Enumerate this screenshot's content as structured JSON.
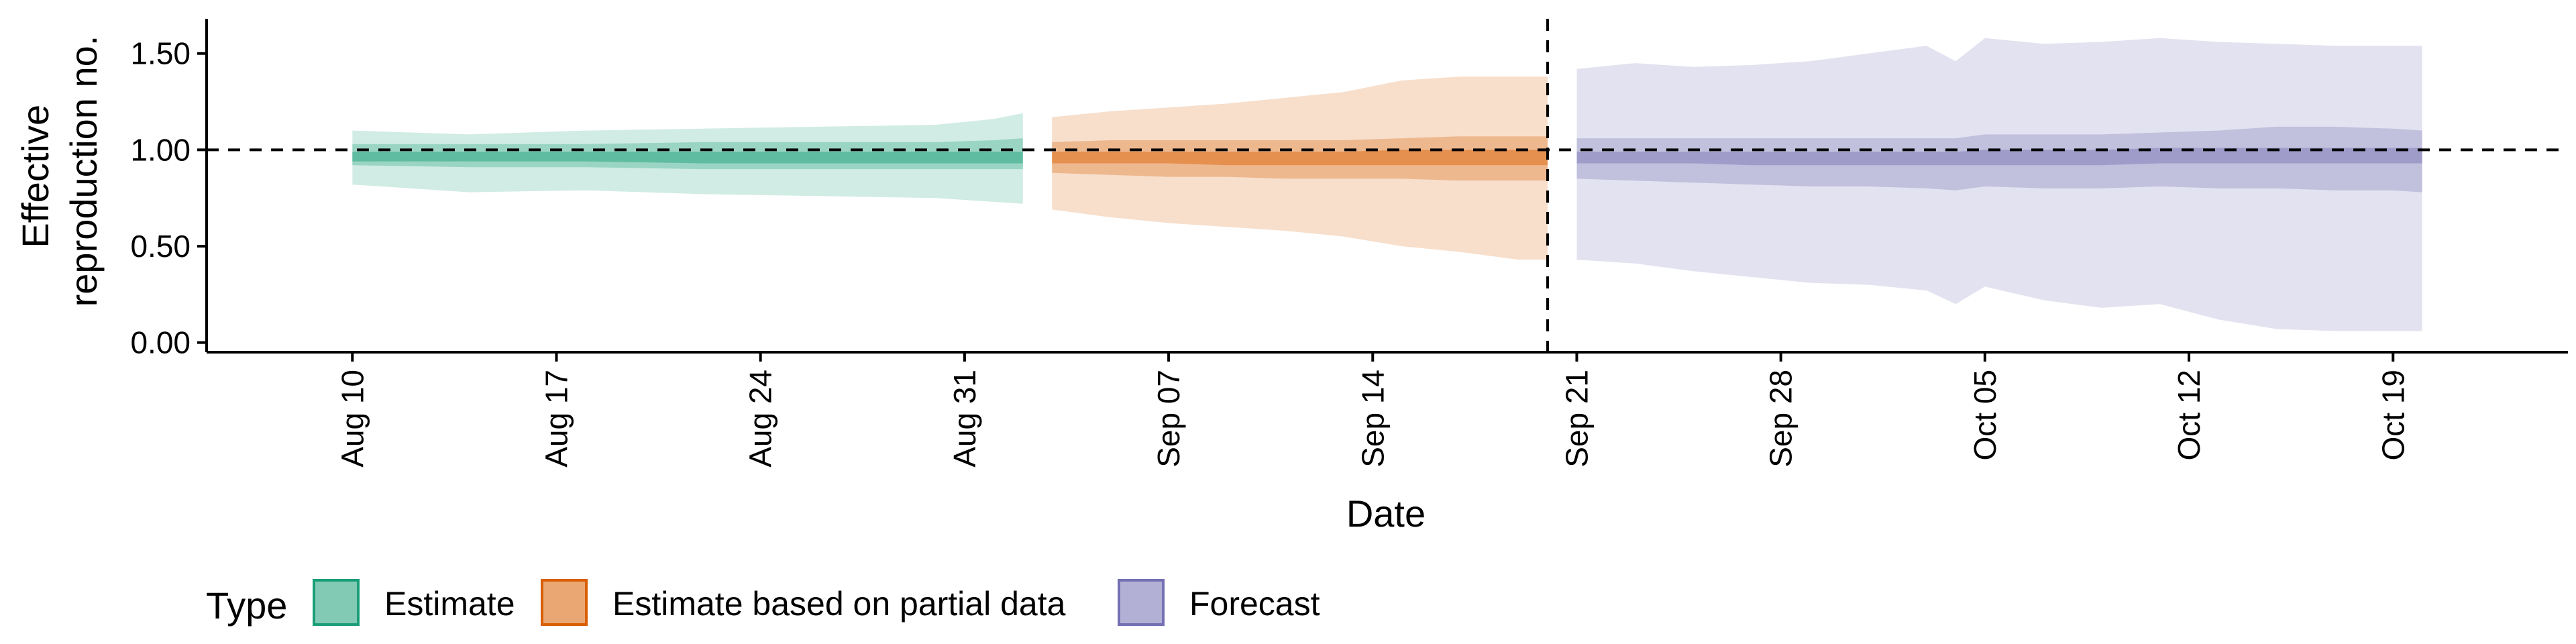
{
  "chart_data": {
    "type": "area",
    "xlabel": "Date",
    "ylabel_lines": [
      "Effective",
      "reproduction no."
    ],
    "ylim": [
      -0.05,
      1.68
    ],
    "xlim": [
      "2020-08-05",
      "2020-10-25"
    ],
    "y_ticks": [
      0.0,
      0.5,
      1.0,
      1.5
    ],
    "y_tick_labels": [
      "0.00",
      "0.50",
      "1.00",
      "1.50"
    ],
    "x_ticks": [
      "2020-08-10",
      "2020-08-17",
      "2020-08-24",
      "2020-08-31",
      "2020-09-07",
      "2020-09-14",
      "2020-09-21",
      "2020-09-28",
      "2020-10-05",
      "2020-10-12",
      "2020-10-19"
    ],
    "x_tick_labels": [
      "Aug 10",
      "Aug 17",
      "Aug 24",
      "Aug 31",
      "Sep 07",
      "Sep 14",
      "Sep 21",
      "Sep 28",
      "Oct 05",
      "Oct 12",
      "Oct 19"
    ],
    "reference_hline": 1.0,
    "reference_vline": "2020-09-20",
    "grid": false,
    "legend": {
      "title": "Type",
      "position": "bottom-left"
    },
    "series": [
      {
        "name": "Estimate",
        "color": "#1B9E77",
        "x": [
          "2020-08-10",
          "2020-08-14",
          "2020-08-18",
          "2020-08-22",
          "2020-08-26",
          "2020-08-30",
          "2020-09-01",
          "2020-09-02"
        ],
        "lower_90": [
          0.82,
          0.78,
          0.79,
          0.77,
          0.76,
          0.75,
          0.73,
          0.72
        ],
        "upper_90": [
          1.1,
          1.08,
          1.1,
          1.11,
          1.12,
          1.13,
          1.16,
          1.19
        ],
        "lower_50": [
          0.92,
          0.91,
          0.91,
          0.9,
          0.9,
          0.9,
          0.9,
          0.9
        ],
        "upper_50": [
          1.03,
          1.03,
          1.03,
          1.04,
          1.04,
          1.04,
          1.05,
          1.06
        ],
        "lower_20": [
          0.94,
          0.94,
          0.94,
          0.93,
          0.93,
          0.93,
          0.93,
          0.93
        ],
        "upper_20": [
          0.99,
          0.99,
          0.99,
          0.99,
          0.99,
          0.99,
          0.99,
          0.99
        ]
      },
      {
        "name": "Estimate based on partial data",
        "color": "#D95F02",
        "x": [
          "2020-09-03",
          "2020-09-05",
          "2020-09-07",
          "2020-09-09",
          "2020-09-11",
          "2020-09-13",
          "2020-09-15",
          "2020-09-17",
          "2020-09-19",
          "2020-09-20"
        ],
        "lower_90": [
          0.69,
          0.65,
          0.62,
          0.6,
          0.58,
          0.55,
          0.5,
          0.47,
          0.43,
          0.43
        ],
        "upper_90": [
          1.17,
          1.2,
          1.22,
          1.24,
          1.27,
          1.3,
          1.36,
          1.38,
          1.38,
          1.38
        ],
        "lower_50": [
          0.88,
          0.87,
          0.86,
          0.86,
          0.85,
          0.85,
          0.85,
          0.84,
          0.84,
          0.84
        ],
        "upper_50": [
          1.04,
          1.05,
          1.05,
          1.05,
          1.05,
          1.05,
          1.06,
          1.07,
          1.07,
          1.07
        ],
        "lower_20": [
          0.93,
          0.93,
          0.93,
          0.92,
          0.92,
          0.92,
          0.92,
          0.92,
          0.92,
          0.92
        ],
        "upper_20": [
          0.99,
          0.99,
          0.99,
          0.99,
          0.99,
          0.99,
          1.0,
          1.0,
          1.0,
          1.0
        ]
      },
      {
        "name": "Forecast",
        "color": "#7570B3",
        "x": [
          "2020-09-21",
          "2020-09-23",
          "2020-09-25",
          "2020-09-27",
          "2020-09-29",
          "2020-10-01",
          "2020-10-03",
          "2020-10-04",
          "2020-10-05",
          "2020-10-07",
          "2020-10-09",
          "2020-10-11",
          "2020-10-13",
          "2020-10-15",
          "2020-10-17",
          "2020-10-19",
          "2020-10-20"
        ],
        "lower_90": [
          0.43,
          0.41,
          0.37,
          0.34,
          0.31,
          0.3,
          0.27,
          0.2,
          0.29,
          0.22,
          0.18,
          0.2,
          0.12,
          0.07,
          0.06,
          0.06,
          0.06
        ],
        "upper_90": [
          1.42,
          1.45,
          1.43,
          1.44,
          1.46,
          1.5,
          1.54,
          1.46,
          1.58,
          1.55,
          1.56,
          1.58,
          1.56,
          1.55,
          1.54,
          1.54,
          1.54
        ],
        "lower_50": [
          0.85,
          0.84,
          0.83,
          0.82,
          0.81,
          0.81,
          0.8,
          0.79,
          0.81,
          0.8,
          0.8,
          0.81,
          0.8,
          0.8,
          0.79,
          0.79,
          0.78
        ],
        "upper_50": [
          1.06,
          1.06,
          1.06,
          1.06,
          1.06,
          1.06,
          1.06,
          1.06,
          1.08,
          1.08,
          1.08,
          1.09,
          1.1,
          1.12,
          1.12,
          1.11,
          1.1
        ],
        "lower_20": [
          0.93,
          0.93,
          0.93,
          0.92,
          0.92,
          0.92,
          0.92,
          0.92,
          0.92,
          0.92,
          0.92,
          0.93,
          0.93,
          0.93,
          0.93,
          0.93,
          0.93
        ],
        "upper_20": [
          0.99,
          0.99,
          0.99,
          0.99,
          0.99,
          0.99,
          0.99,
          0.99,
          1.0,
          1.0,
          1.0,
          1.01,
          1.01,
          1.01,
          1.01,
          1.01,
          1.01
        ]
      }
    ]
  }
}
